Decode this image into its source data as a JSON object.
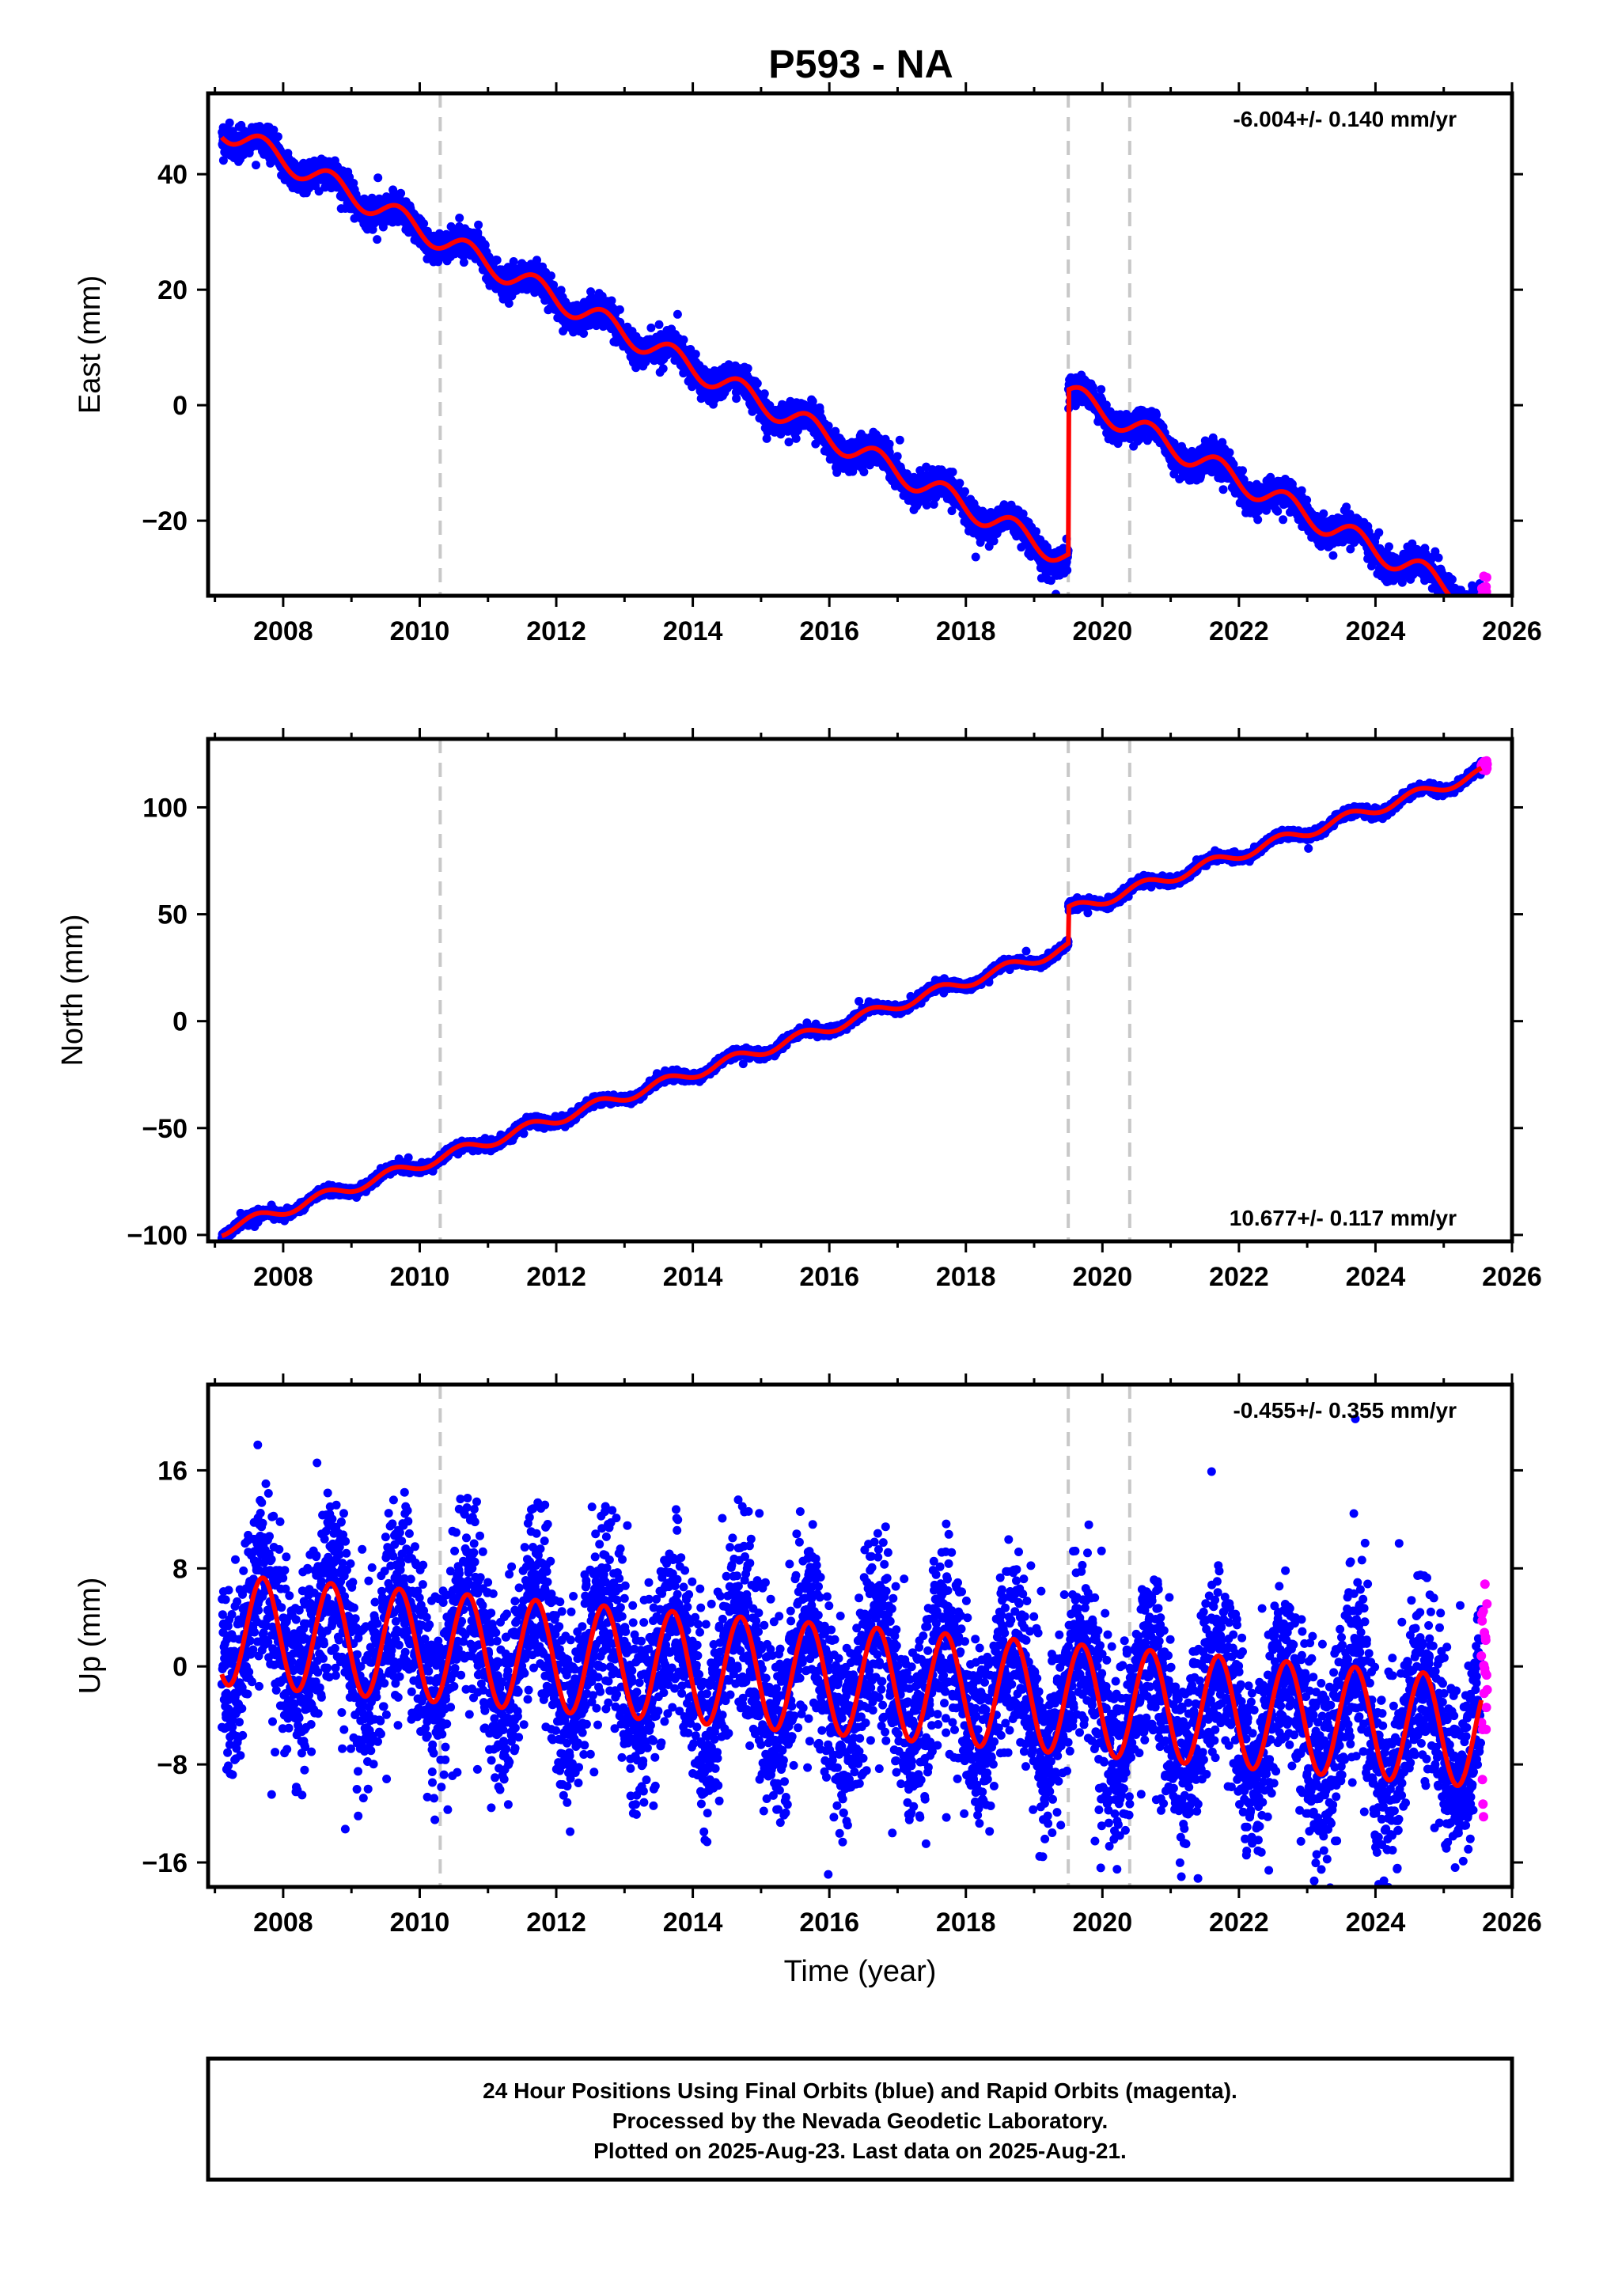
{
  "title": "P593 - NA",
  "footer": {
    "line1": "24 Hour Positions Using Final Orbits (blue) and Rapid Orbits (magenta).",
    "line2": "Processed by the Nevada Geodetic Laboratory.",
    "line3": "Plotted on 2025-Aug-23. Last data on 2025-Aug-21."
  },
  "colors": {
    "final_orbits": "#0000ff",
    "rapid_orbits": "#ff00ff",
    "model_fit": "#ff0000",
    "event_lines": "#c8c8c8",
    "frame": "#000000"
  },
  "chart_data": [
    {
      "type": "scatter",
      "panel": "east",
      "ylabel": "East (mm)",
      "xlabel": "",
      "rate_label": "-6.004+/- 0.140 mm/yr",
      "rate_label_position": "top-right",
      "xlim": [
        2006.9,
        2026.0
      ],
      "ylim": [
        -33,
        54
      ],
      "x_ticks": [
        2008,
        2010,
        2012,
        2014,
        2016,
        2018,
        2020,
        2022,
        2024,
        2026
      ],
      "x_tick_labels": [
        "2008",
        "2010",
        "2012",
        "2014",
        "2016",
        "2018",
        "2020",
        "2022",
        "2024",
        "2026"
      ],
      "y_ticks": [
        -20,
        0,
        20,
        40
      ],
      "y_tick_labels": [
        "−20",
        "0",
        "20",
        "40"
      ],
      "event_lines_x": [
        2010.3,
        2019.5,
        2020.4
      ],
      "data_span": {
        "final_start": 2007.1,
        "final_end": 2025.55,
        "rapid_start": 2025.55,
        "rapid_end": 2025.64
      },
      "model": {
        "offset_at_start": 48,
        "rate_mm_per_yr": -6.004,
        "annual_amplitude": 2.0,
        "annual_phase_year": 2007.7,
        "steps": [
          {
            "x": 2019.5,
            "size": 28.5
          }
        ],
        "scatter_sd": 1.2
      },
      "series": [
        {
          "name": "Final Orbits",
          "color": "#0000ff"
        },
        {
          "name": "Rapid Orbits",
          "color": "#ff00ff"
        },
        {
          "name": "Model",
          "color": "#ff0000"
        }
      ]
    },
    {
      "type": "scatter",
      "panel": "north",
      "ylabel": "North (mm)",
      "xlabel": "",
      "rate_label": "10.677+/- 0.117 mm/yr",
      "rate_label_position": "bottom-right",
      "xlim": [
        2006.9,
        2026.0
      ],
      "ylim": [
        -103,
        132
      ],
      "x_ticks": [
        2008,
        2010,
        2012,
        2014,
        2016,
        2018,
        2020,
        2022,
        2024,
        2026
      ],
      "x_tick_labels": [
        "2008",
        "2010",
        "2012",
        "2014",
        "2016",
        "2018",
        "2020",
        "2022",
        "2024",
        "2026"
      ],
      "y_ticks": [
        -100,
        -50,
        0,
        50,
        100
      ],
      "y_tick_labels": [
        "−100",
        "−50",
        "0",
        "50",
        "100"
      ],
      "event_lines_x": [
        2010.3,
        2019.5,
        2020.4
      ],
      "data_span": {
        "final_start": 2007.1,
        "final_end": 2025.55,
        "rapid_start": 2025.55,
        "rapid_end": 2025.64
      },
      "model": {
        "offset_at_start": -98,
        "rate_mm_per_yr": 10.677,
        "annual_amplitude": 2.5,
        "annual_phase_year": 2007.6,
        "steps": [
          {
            "x": 2019.5,
            "size": 17
          }
        ],
        "scatter_sd": 1.0
      },
      "series": [
        {
          "name": "Final Orbits",
          "color": "#0000ff"
        },
        {
          "name": "Rapid Orbits",
          "color": "#ff00ff"
        },
        {
          "name": "Model",
          "color": "#ff0000"
        }
      ]
    },
    {
      "type": "scatter",
      "panel": "up",
      "ylabel": "Up (mm)",
      "xlabel": "Time (year)",
      "rate_label": "-0.455+/- 0.355 mm/yr",
      "rate_label_position": "top-right",
      "xlim": [
        2006.9,
        2026.0
      ],
      "ylim": [
        -18,
        23
      ],
      "x_ticks": [
        2008,
        2010,
        2012,
        2014,
        2016,
        2018,
        2020,
        2022,
        2024,
        2026
      ],
      "x_tick_labels": [
        "2008",
        "2010",
        "2012",
        "2014",
        "2016",
        "2018",
        "2020",
        "2022",
        "2024",
        "2026"
      ],
      "y_ticks": [
        -16,
        -8,
        0,
        8,
        16
      ],
      "y_tick_labels": [
        "−16",
        "−8",
        "0",
        "8",
        "16"
      ],
      "event_lines_x": [
        2010.3,
        2019.5,
        2020.4
      ],
      "data_span": {
        "final_start": 2007.1,
        "final_end": 2025.55,
        "rapid_start": 2025.55,
        "rapid_end": 2025.64
      },
      "model": {
        "offset_at_start": 3.0,
        "rate_mm_per_yr": -0.455,
        "annual_amplitude": 4.5,
        "annual_phase_year": 2007.7,
        "steps": [],
        "scatter_sd": 3.8
      },
      "series": [
        {
          "name": "Final Orbits",
          "color": "#0000ff"
        },
        {
          "name": "Rapid Orbits",
          "color": "#ff00ff"
        },
        {
          "name": "Model",
          "color": "#ff0000"
        }
      ]
    }
  ]
}
